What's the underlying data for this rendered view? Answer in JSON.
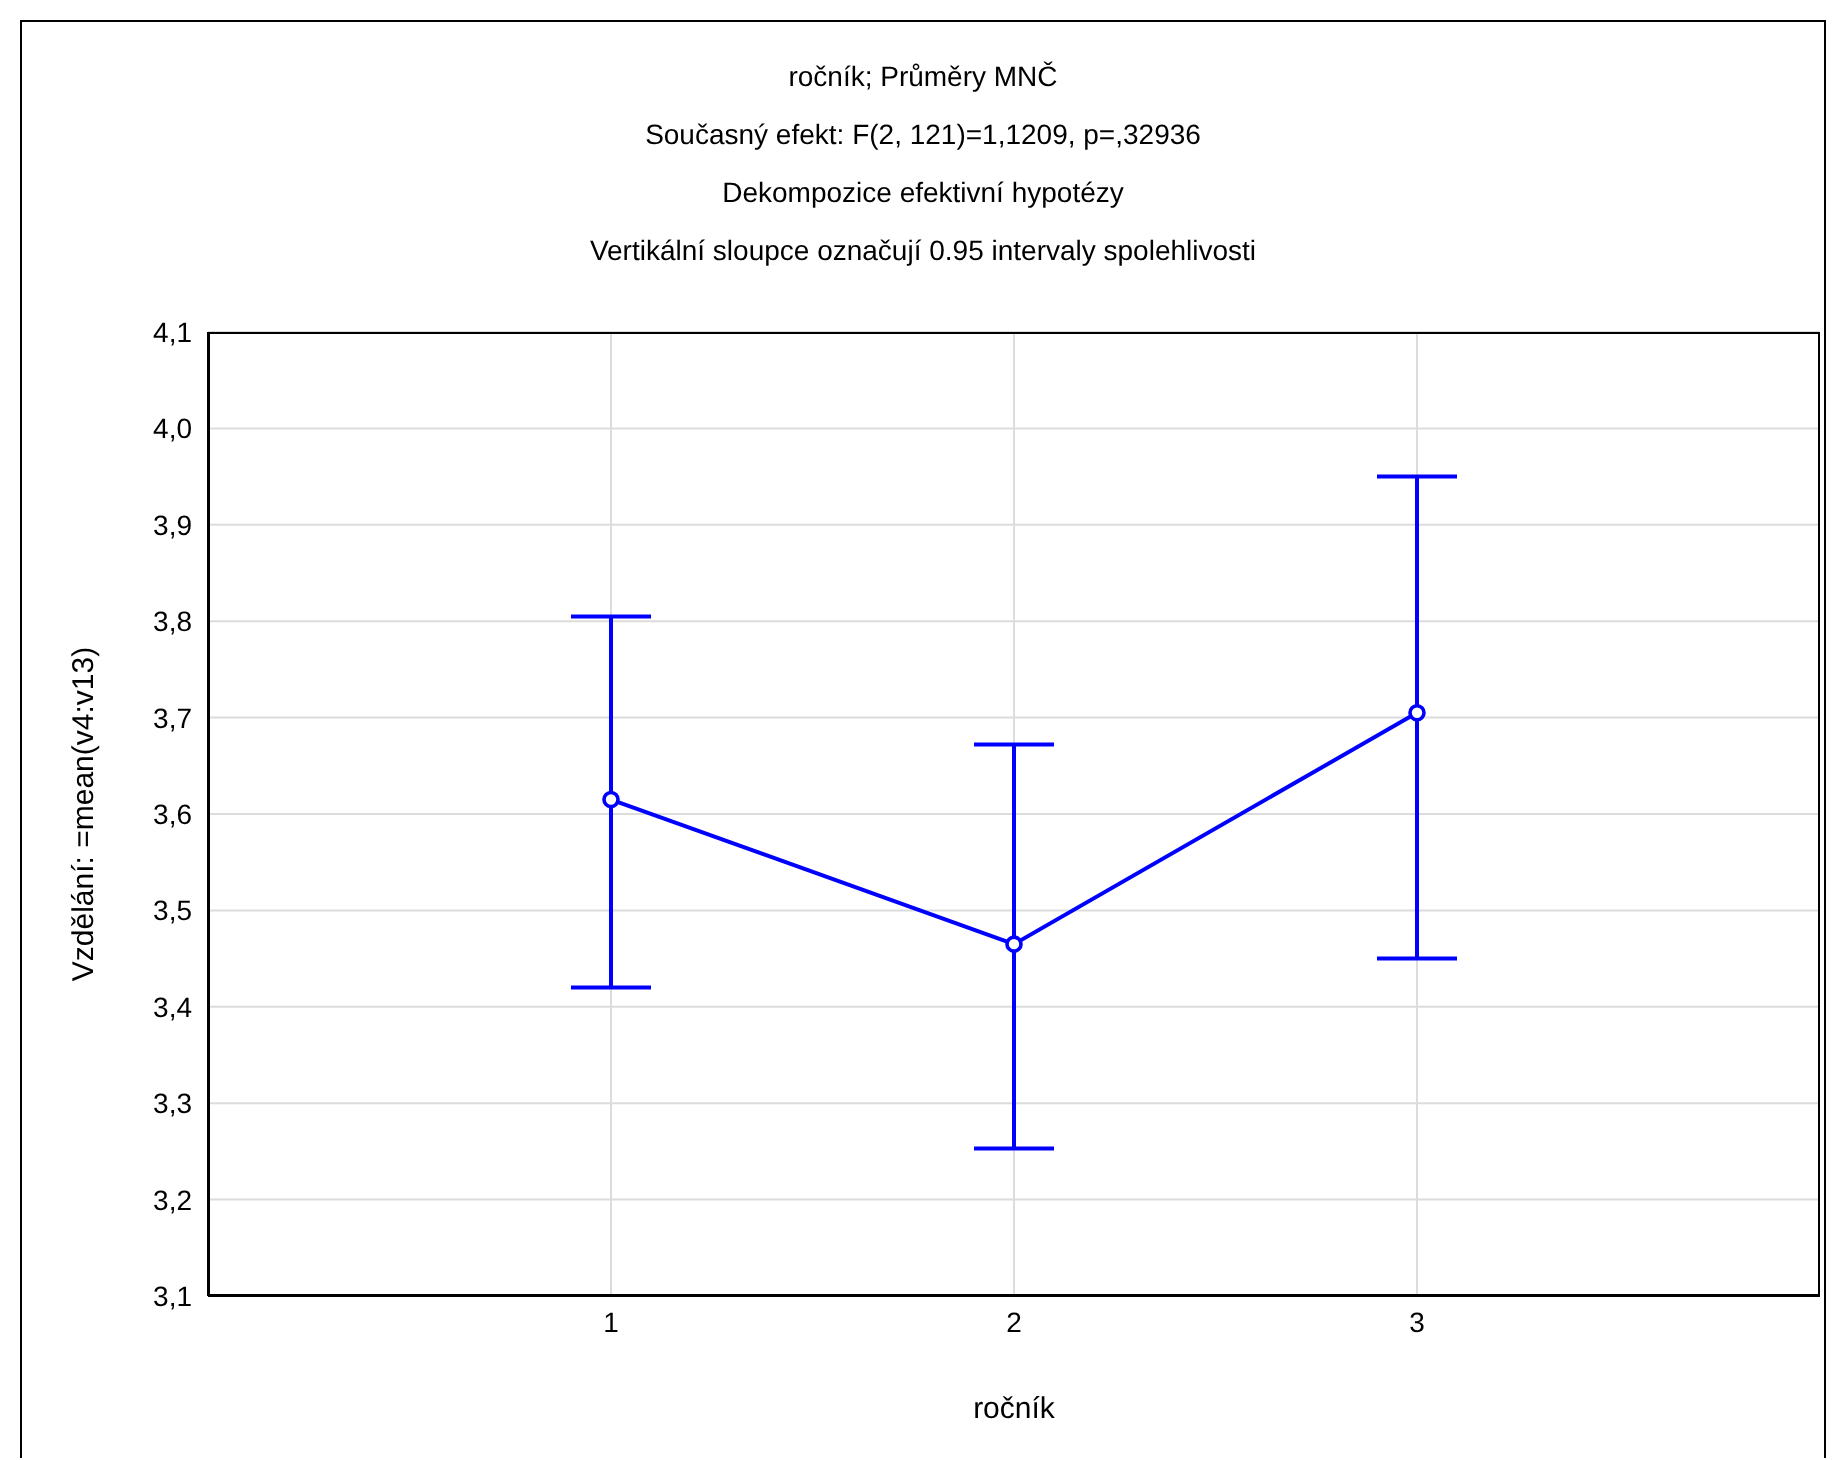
{
  "chart_data": {
    "type": "line",
    "title": "ročník; Průměry MNČ",
    "subtitle": "Současný efekt: F(2, 121)=1,1209, p=,32936",
    "annotations": [
      "Dekompozice efektivní hypotézy",
      "Vertikální sloupce označují 0.95 intervaly spolehlivosti"
    ],
    "xlabel": "ročník",
    "ylabel": "Vzdělání: =mean(v4:v13)",
    "x": [
      1,
      2,
      3
    ],
    "series": [
      {
        "color": "#0000ff",
        "values": [
          3.615,
          3.465,
          3.705
        ],
        "errors": [
          [
            3.42,
            3.805
          ],
          [
            3.253,
            3.672
          ],
          [
            3.45,
            3.95
          ]
        ]
      }
    ],
    "xlim": [
      0,
      4
    ],
    "xticks": [
      1,
      2,
      3
    ],
    "ylim": [
      3.1,
      4.1
    ],
    "yticks": [
      {
        "value": 3.1,
        "label": "3,1"
      },
      {
        "value": 3.2,
        "label": "3,2"
      },
      {
        "value": 3.3,
        "label": "3,3"
      },
      {
        "value": 3.4,
        "label": "3,4"
      },
      {
        "value": 3.5,
        "label": "3,5"
      },
      {
        "value": 3.6,
        "label": "3,6"
      },
      {
        "value": 3.7,
        "label": "3,7"
      },
      {
        "value": 3.8,
        "label": "3,8"
      },
      {
        "value": 3.9,
        "label": "3,9"
      },
      {
        "value": 4.0,
        "label": "4,0"
      },
      {
        "value": 4.1,
        "label": "4,1"
      }
    ],
    "grid": true,
    "marker": "circle",
    "line_style": "solid"
  }
}
